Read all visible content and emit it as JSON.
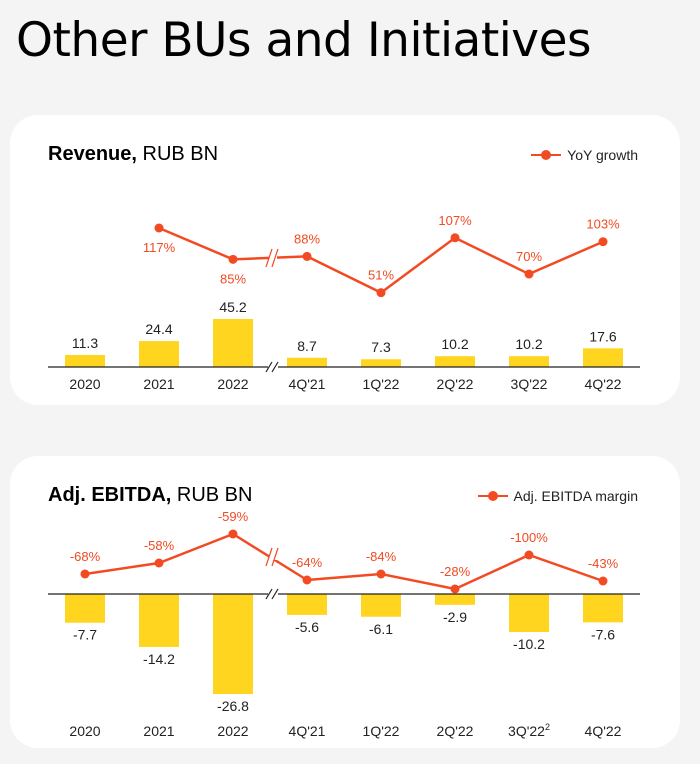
{
  "page": {
    "title": "Other BUs and Initiatives"
  },
  "colors": {
    "bar": "#ffd51f",
    "line": "#f24a22",
    "axis": "#222222"
  },
  "revenue": {
    "title_bold": "Revenue,",
    "title_rest": " RUB BN",
    "legend": "YoY growth"
  },
  "ebitda": {
    "title_bold": "Adj. EBITDA,",
    "title_rest": " RUB BN",
    "legend": "Adj. EBITDA margin"
  },
  "chart_data": [
    {
      "type": "bar",
      "title": "Revenue, RUB BN",
      "categories": [
        "2020",
        "2021",
        "2022",
        "4Q'21",
        "1Q'22",
        "2Q'22",
        "3Q'22",
        "4Q'22"
      ],
      "values": [
        11.3,
        24.4,
        45.2,
        8.7,
        7.3,
        10.2,
        10.2,
        17.6
      ],
      "value_labels": [
        "11.3",
        "24.4",
        "45.2",
        "8.7",
        "7.3",
        "10.2",
        "10.2",
        "17.6"
      ],
      "line": {
        "name": "YoY growth",
        "values": [
          null,
          117,
          85,
          88,
          51,
          107,
          70,
          103
        ],
        "labels": [
          "",
          "117%",
          "85%",
          "88%",
          "51%",
          "107%",
          "70%",
          "103%"
        ]
      },
      "axis_break_after": "2022"
    },
    {
      "type": "bar",
      "title": "Adj. EBITDA, RUB BN",
      "categories": [
        "2020",
        "2021",
        "2022",
        "4Q'21",
        "1Q'22",
        "2Q'22",
        "3Q'22",
        "4Q'22"
      ],
      "category_superscripts": [
        "",
        "",
        "",
        "",
        "",
        "",
        "2",
        ""
      ],
      "values": [
        -7.7,
        -14.2,
        -26.8,
        -5.6,
        -6.1,
        -2.9,
        -10.2,
        -7.6
      ],
      "value_labels": [
        "-7.7",
        "-14.2",
        "-26.8",
        "-5.6",
        "-6.1",
        "-2.9",
        "-10.2",
        "-7.6"
      ],
      "line": {
        "name": "Adj. EBITDA margin",
        "values": [
          -68,
          -58,
          -59,
          -64,
          -84,
          -28,
          -100,
          -43
        ],
        "labels": [
          "-68%",
          "-58%",
          "-59%",
          "-64%",
          "-84%",
          "-28%",
          "-100%",
          "-43%"
        ]
      },
      "axis_break_after": "2022"
    }
  ]
}
